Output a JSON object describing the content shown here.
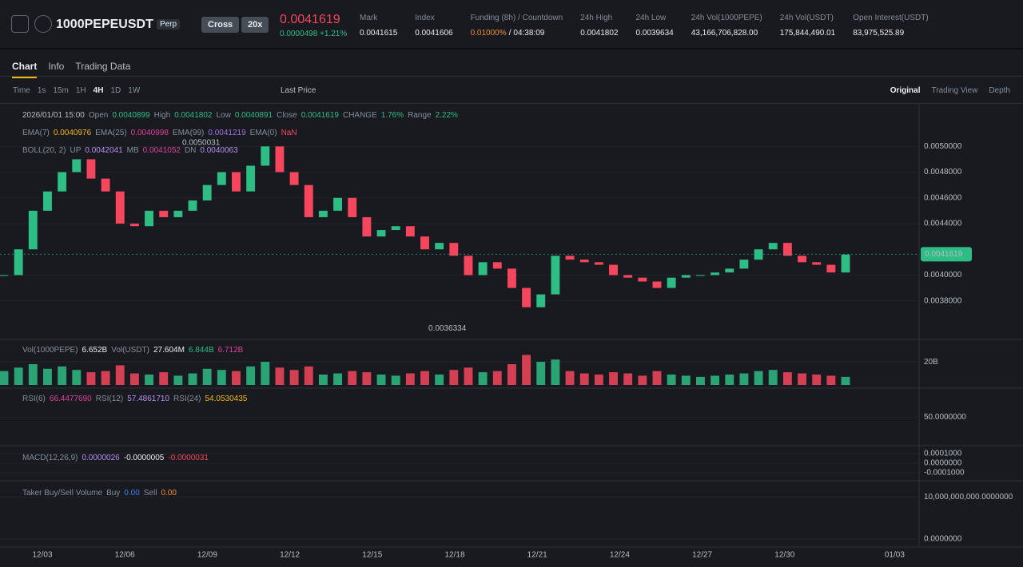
{
  "header": {
    "symbol": "1000PEPEUSDT",
    "badge": "Perp",
    "margin": "Cross",
    "leverage": "20x",
    "price": "0.0041619",
    "change_abs": "0.0000498",
    "change_pct": "+1.21%",
    "stats": [
      {
        "label": "Mark",
        "value": "0.0041615"
      },
      {
        "label": "Index",
        "value": "0.0041606"
      },
      {
        "label": "Funding (8h) / Countdown",
        "value": "0.01000%",
        "sep": "/",
        "countdown": "04:38:09"
      },
      {
        "label": "24h High",
        "value": "0.0041802"
      },
      {
        "label": "24h Low",
        "value": "0.0039634"
      },
      {
        "label": "24h Vol(1000PEPE)",
        "value": "43,166,706,828.00"
      },
      {
        "label": "24h Vol(USDT)",
        "value": "175,844,490.01"
      },
      {
        "label": "Open Interest(USDT)",
        "value": "83,975,525.89"
      }
    ]
  },
  "tabs": [
    "Chart",
    "Info",
    "Trading Data"
  ],
  "toolbar": {
    "intervals": [
      "Time",
      "1s",
      "15m",
      "1H",
      "4H",
      "1D",
      "1W"
    ],
    "active": "4H",
    "price_type": "Last Price",
    "views": [
      "Original",
      "Trading View",
      "Depth"
    ]
  },
  "legend": [
    [
      {
        "t": "2026/01/01 15:00",
        "c": "#b7bdc6"
      },
      {
        "t": "Open",
        "c": "#848e9c"
      },
      {
        "t": "0.0040899",
        "c": "#2ebd85"
      },
      {
        "t": "High",
        "c": "#848e9c"
      },
      {
        "t": "0.0041802",
        "c": "#2ebd85"
      },
      {
        "t": "Low",
        "c": "#848e9c"
      },
      {
        "t": "0.0040891",
        "c": "#2ebd85"
      },
      {
        "t": "Close",
        "c": "#848e9c"
      },
      {
        "t": "0.0041619",
        "c": "#2ebd85"
      },
      {
        "t": "CHANGE",
        "c": "#848e9c"
      },
      {
        "t": "1.76%",
        "c": "#2ebd85"
      },
      {
        "t": "Range",
        "c": "#848e9c"
      },
      {
        "t": "2.22%",
        "c": "#2ebd85"
      }
    ],
    [
      {
        "t": "EMA(7)",
        "c": "#848e9c"
      },
      {
        "t": "0.0040976",
        "c": "#f0b90b"
      },
      {
        "t": "EMA(25)",
        "c": "#848e9c"
      },
      {
        "t": "0.0040998",
        "c": "#e0409a"
      },
      {
        "t": "EMA(99)",
        "c": "#848e9c"
      },
      {
        "t": "0.0041219",
        "c": "#a070e0"
      },
      {
        "t": "EMA(0)",
        "c": "#848e9c"
      },
      {
        "t": "NaN",
        "c": "#f6465d"
      }
    ],
    [
      {
        "t": "BOLL(20, 2)",
        "c": "#848e9c"
      },
      {
        "t": "UP",
        "c": "#848e9c"
      },
      {
        "t": "0.0042041",
        "c": "#b68ff0"
      },
      {
        "t": "MB",
        "c": "#848e9c"
      },
      {
        "t": "0.0041052",
        "c": "#e0409a"
      },
      {
        "t": "DN",
        "c": "#848e9c"
      },
      {
        "t": "0.0040063",
        "c": "#b68ff0"
      }
    ]
  ],
  "vol_legend": [
    {
      "t": "Vol(1000PEPE)",
      "c": "#848e9c"
    },
    {
      "t": "6.652B",
      "c": "#eaecef"
    },
    {
      "t": "Vol(USDT)",
      "c": "#848e9c"
    },
    {
      "t": "27.604M",
      "c": "#eaecef"
    },
    {
      "t": "6.844B",
      "c": "#2ebd85"
    },
    {
      "t": "6.712B",
      "c": "#e0409a"
    }
  ],
  "rsi_legend": [
    {
      "t": "RSI(6)",
      "c": "#848e9c"
    },
    {
      "t": "66.4477690",
      "c": "#e0409a"
    },
    {
      "t": "RSI(12)",
      "c": "#848e9c"
    },
    {
      "t": "57.4861710",
      "c": "#b68ff0"
    },
    {
      "t": "RSI(24)",
      "c": "#848e9c"
    },
    {
      "t": "54.0530435",
      "c": "#f0b90b"
    }
  ],
  "macd_legend": [
    {
      "t": "MACD(12,26,9)",
      "c": "#848e9c"
    },
    {
      "t": "0.0000026",
      "c": "#b68ff0"
    },
    {
      "t": "-0.0000005",
      "c": "#eaecef"
    },
    {
      "t": "-0.0000031",
      "c": "#f6465d"
    }
  ],
  "taker_legend": [
    {
      "t": "Taker Buy/Sell Volume",
      "c": "#848e9c"
    },
    {
      "t": "Buy",
      "c": "#848e9c"
    },
    {
      "t": "0.00",
      "c": "#3d7ef5"
    },
    {
      "t": "Sell",
      "c": "#848e9c"
    },
    {
      "t": "0.00",
      "c": "#f0902b"
    }
  ],
  "chart_data": {
    "type": "candlestick",
    "up_color": "#2ebd85",
    "down_color": "#f6465d",
    "ylim": [
      0.0035,
      0.0053
    ],
    "yticks": [
      {
        "value": 0.005,
        "label": "0.0050000"
      },
      {
        "value": 0.0048,
        "label": "0.0048000"
      },
      {
        "value": 0.0046,
        "label": "0.0046000"
      },
      {
        "value": 0.0044,
        "label": "0.0044000"
      },
      {
        "value": 0.004,
        "label": "0.0040000"
      },
      {
        "value": 0.0038,
        "label": "0.0038000"
      }
    ],
    "closes": [
      0.004,
      0.0042,
      0.0045,
      0.00465,
      0.0048,
      0.0049,
      0.00475,
      0.00465,
      0.0044,
      0.00438,
      0.0045,
      0.00445,
      0.0045,
      0.00458,
      0.0047,
      0.0048,
      0.00465,
      0.00485,
      0.005,
      0.0048,
      0.0047,
      0.00445,
      0.0045,
      0.0046,
      0.00445,
      0.0043,
      0.00435,
      0.00438,
      0.0043,
      0.0042,
      0.00425,
      0.00415,
      0.004,
      0.0041,
      0.00405,
      0.0039,
      0.00375,
      0.00385,
      0.00415,
      0.00412,
      0.0041,
      0.00408,
      0.004,
      0.00398,
      0.00395,
      0.0039,
      0.00398,
      0.004,
      0.004,
      0.00402,
      0.00405,
      0.00412,
      0.0042,
      0.00425,
      0.00415,
      0.0041,
      0.00408,
      0.00402,
      0.00416
    ],
    "volumes": [
      12000000000,
      15000000000,
      18000000000,
      14000000000,
      16000000000,
      13000000000,
      11000000000,
      12000000000,
      17000000000,
      10000000000,
      9000000000,
      11000000000,
      8000000000,
      10000000000,
      14000000000,
      13000000000,
      12000000000,
      16000000000,
      20000000000,
      15000000000,
      13000000000,
      16000000000,
      9000000000,
      10000000000,
      12000000000,
      11000000000,
      9000000000,
      8000000000,
      10000000000,
      12000000000,
      9000000000,
      13000000000,
      15000000000,
      11000000000,
      12000000000,
      18000000000,
      26000000000,
      20000000000,
      22000000000,
      12000000000,
      10000000000,
      9000000000,
      11000000000,
      10000000000,
      8000000000,
      12000000000,
      9000000000,
      8000000000,
      7000000000,
      8000000000,
      9000000000,
      10000000000,
      12000000000,
      13000000000,
      11000000000,
      10000000000,
      9000000000,
      8000000000,
      7000000000
    ],
    "vol_ylim": [
      0,
      36000000000
    ],
    "vol_yticks": [
      {
        "value": 20000000000,
        "label": "20B"
      }
    ],
    "rsi_ylim": [
      0,
      100
    ],
    "rsi_yticks": [
      {
        "value": 50,
        "label": "50.0000000"
      }
    ],
    "macd_ylim": [
      -0.00015,
      0.00015
    ],
    "macd_yticks": [
      {
        "value": 0.0001,
        "label": "0.0001000"
      },
      {
        "value": 0,
        "label": "0.0000000"
      },
      {
        "value": -0.0001,
        "label": "-0.0001000"
      }
    ],
    "taker_ylim": [
      0,
      13300000000
    ],
    "taker_yticks": [
      {
        "value": 10000000000,
        "label": "10,000,000,000.0000000"
      },
      {
        "value": 0,
        "label": "0.0000000"
      }
    ],
    "xticks": [
      "12/03",
      "12/06",
      "12/09",
      "12/12",
      "12/15",
      "12/18",
      "12/21",
      "12/24",
      "12/27",
      "12/30",
      "01/03"
    ],
    "high_label": {
      "value": 0.0050031,
      "label": "0.0050031"
    },
    "low_label": {
      "value": 0.0036334,
      "label": "0.0036334"
    },
    "price_tag": {
      "value": 0.0041619,
      "label": "0.0041619"
    }
  }
}
